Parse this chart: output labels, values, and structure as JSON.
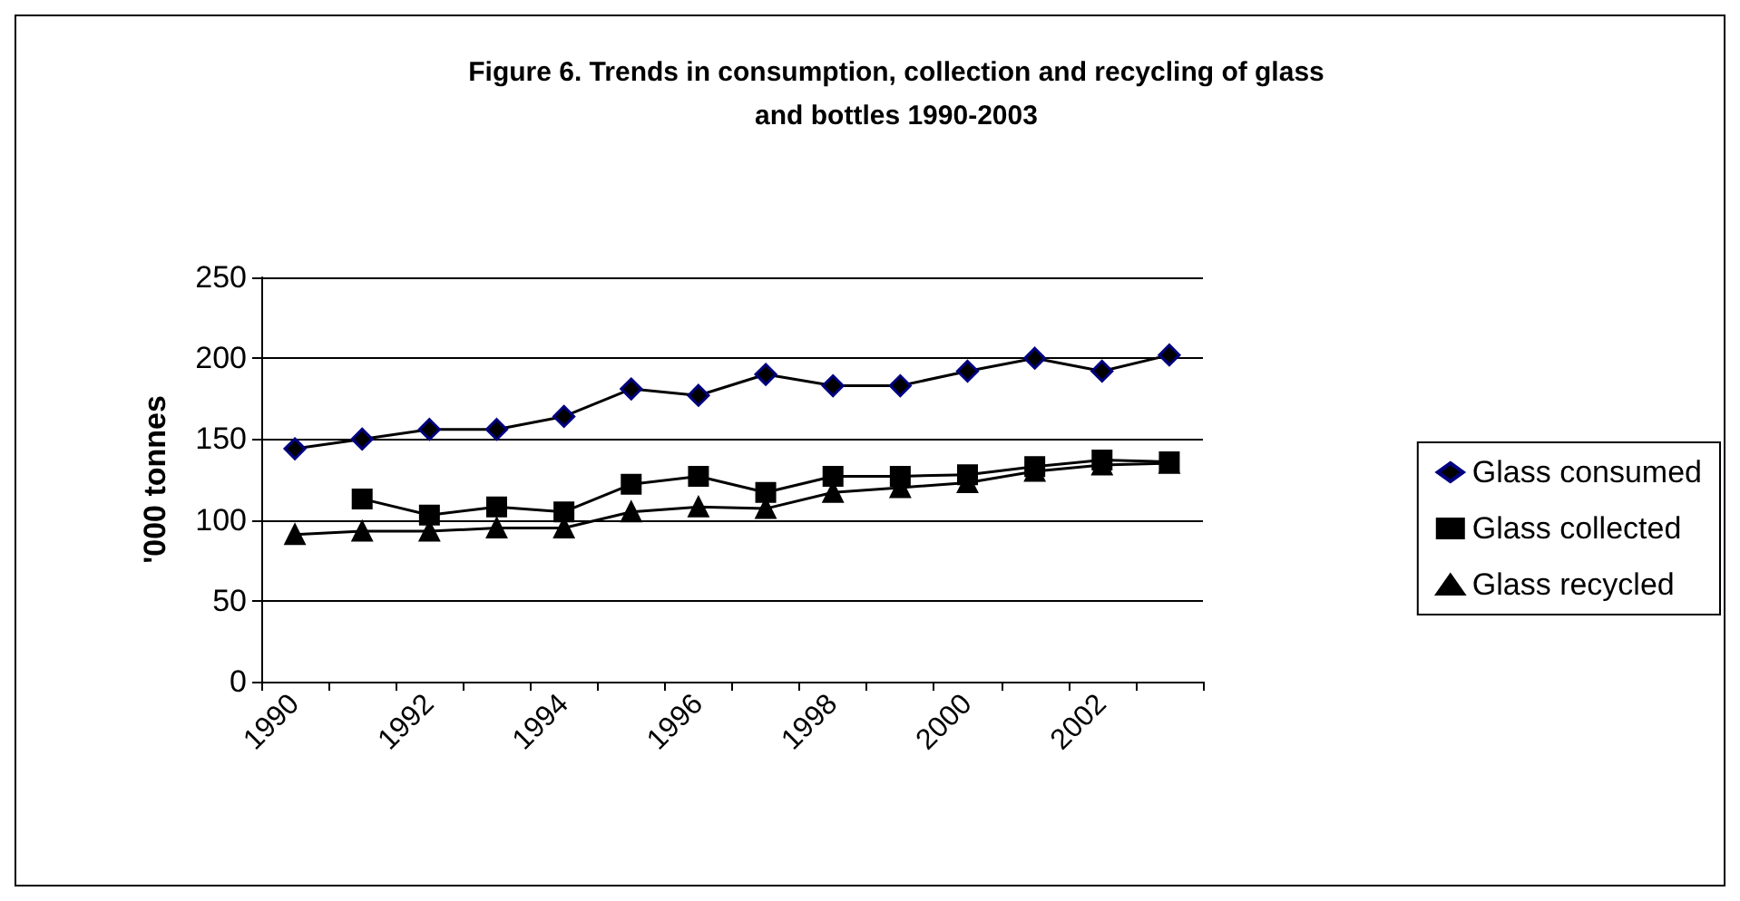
{
  "chart_data": {
    "type": "line",
    "title": "Figure 6. Trends in consumption, collection and recycling of glass\nand bottles 1990-2003",
    "ylabel": "'000 tonnes",
    "categories": [
      "1990",
      null,
      "1992",
      null,
      "1994",
      null,
      "1996",
      null,
      "1998",
      null,
      "2000",
      null,
      "2002",
      null
    ],
    "series": [
      {
        "name": "Glass consumed",
        "color": "#000080",
        "marker": "diamond",
        "values": [
          144,
          150,
          156,
          156,
          164,
          181,
          177,
          190,
          183,
          183,
          192,
          200,
          192,
          202
        ]
      },
      {
        "name": "Glass collected",
        "color": "#000000",
        "marker": "square",
        "values": [
          null,
          113,
          103,
          108,
          105,
          122,
          127,
          117,
          127,
          127,
          128,
          133,
          137,
          136
        ]
      },
      {
        "name": "Glass recycled",
        "color": "#000000",
        "marker": "triangle",
        "values": [
          91,
          93,
          93,
          95,
          95,
          105,
          108,
          107,
          117,
          120,
          123,
          130,
          134,
          135
        ]
      }
    ],
    "ylim": [
      0,
      250
    ],
    "yticks": [
      0,
      50,
      100,
      150,
      200,
      250
    ],
    "grid": "y",
    "legend": "right",
    "line_style": "solid"
  }
}
